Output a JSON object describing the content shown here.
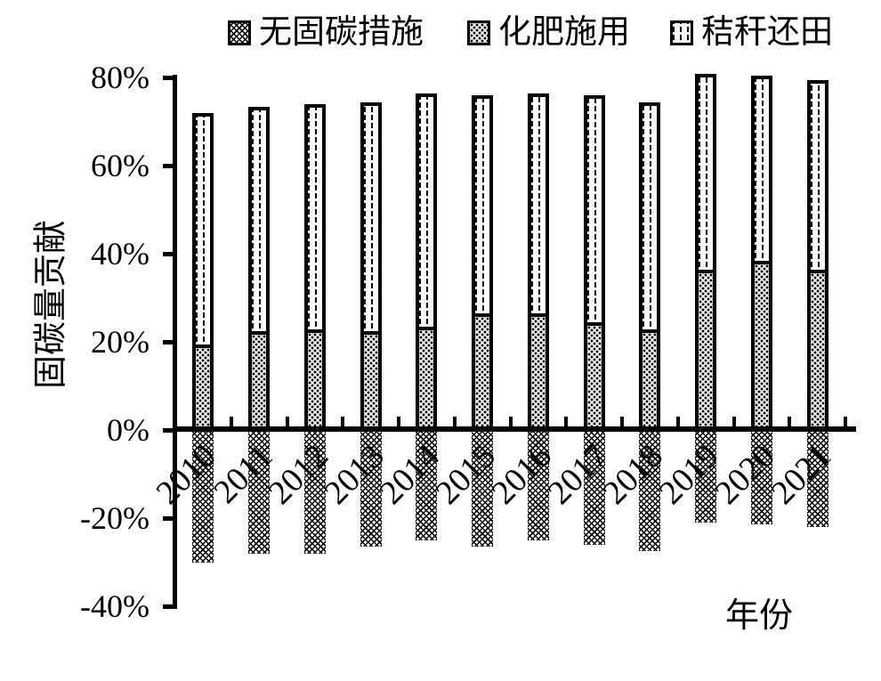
{
  "chart_data": {
    "type": "bar",
    "stacked": true,
    "title": "",
    "xlabel": "年份",
    "ylabel": "固碳量贡献",
    "categories": [
      "2010",
      "2011",
      "2012",
      "2013",
      "2014",
      "2015",
      "2016",
      "2017",
      "2018",
      "2019",
      "2020",
      "2021"
    ],
    "series": [
      {
        "name": "无固碳措施",
        "pattern": "crosshatch",
        "values": [
          -30,
          -28,
          -28,
          -26.5,
          -25,
          -26.5,
          -25,
          -26,
          -27.5,
          -21,
          -21.5,
          -22
        ]
      },
      {
        "name": "化肥施用",
        "pattern": "dots",
        "values": [
          19,
          22,
          22.5,
          22,
          23,
          26,
          26,
          24,
          22.5,
          36,
          38,
          36
        ]
      },
      {
        "name": "秸秆还田",
        "pattern": "dashes",
        "values": [
          52.5,
          51,
          51,
          52,
          53,
          49.5,
          50,
          51.5,
          51.5,
          44.5,
          42,
          43
        ]
      }
    ],
    "ylim": [
      -40,
      80
    ],
    "ytick_step": 20,
    "ytick_labels": [
      "80%",
      "60%",
      "40%",
      "20%",
      "0%",
      "-20%",
      "-40%"
    ],
    "legend_position": "top",
    "grid": false,
    "axis_color": "#000000",
    "background": "#ffffff"
  }
}
